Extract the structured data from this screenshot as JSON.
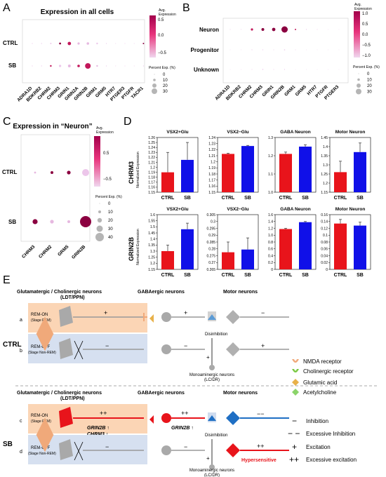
{
  "panel_letters": [
    "A",
    "B",
    "C",
    "D",
    "E"
  ],
  "panelA": {
    "title": "Expression in all cells",
    "rows": [
      "CTRL",
      "SB"
    ],
    "genes": [
      "ADRA1D",
      "BDKRB2",
      "CHRM2",
      "CHRM3",
      "GRIN1",
      "GRIN2A",
      "GRIN2B",
      "GRM1",
      "GRM5",
      "HTR7",
      "PTGER3",
      "PTGFR",
      "TACR1"
    ],
    "legend_title": "Avg.\nExpression",
    "legend_ticks": [
      "0.5",
      "0.0",
      "−0.5"
    ],
    "size_title": "Percent Exp. (%)",
    "size_ticks": [
      "0",
      "10",
      "20",
      "30"
    ]
  },
  "panelB": {
    "rows": [
      "Neuron",
      "Progenitor",
      "Unknown"
    ],
    "genes": [
      "ADRA1D",
      "BDKRB2",
      "CHRM2",
      "CHRM3",
      "GRIN1",
      "GRIN2B",
      "GRM1",
      "GRM5",
      "HTR7",
      "PTGFR",
      "PTGER3"
    ],
    "legend_title": "Avg.\nExpression",
    "legend_ticks": [
      "1.0",
      "0.5",
      "0.0",
      "−0.5",
      "−1.0"
    ],
    "size_title": "Percent Exp. (%)",
    "size_ticks": [
      "0",
      "10",
      "20",
      "30"
    ]
  },
  "panelC": {
    "title": "Expression in “Neuron”",
    "rows": [
      "CTRL",
      "SB"
    ],
    "genes": [
      "CHRM3",
      "CHRM2",
      "GRM5",
      "GRIN2B"
    ],
    "legend_title": "Avg.\nExpression",
    "legend_ticks": [
      "0.5",
      "−0.5"
    ],
    "size_title": "Percent Exp. (%)",
    "size_ticks": [
      "0",
      "10",
      "20",
      "30",
      "40"
    ]
  },
  "panelD": {
    "row_labels": [
      "CHRM3",
      "GRIN2B"
    ],
    "ylabel": "Normalized Expression",
    "colors": {
      "ctrl": "#e8141b",
      "sb": "#1010e8",
      "err": "#f2a0c4"
    },
    "charts": [
      {
        "title": "VSX2+Glu",
        "categories": [
          "CTRL",
          "SB"
        ],
        "values": [
          1.19,
          1.215
        ],
        "errors": [
          0.04,
          0.035
        ],
        "ylim": [
          1.15,
          1.26
        ],
        "ticks": [
          "1.15",
          "1.16",
          "1.17",
          "1.18",
          "1.19",
          "1.2",
          "1.21",
          "1.22",
          "1.23",
          "1.24",
          "1.25",
          "1.26"
        ]
      },
      {
        "title": "VSX2−Glu",
        "categories": [
          "CTRL",
          "SB"
        ],
        "values": [
          1.213,
          1.226
        ],
        "errors": [
          0.001,
          0.001
        ],
        "ylim": [
          1.15,
          1.24
        ],
        "ticks": [
          "1.15",
          "1.16",
          "1.17",
          "1.18",
          "1.19",
          "1.2",
          "1.21",
          "1.22",
          "1.23",
          "1.24"
        ]
      },
      {
        "title": "GABA Neuron",
        "categories": [
          "CTRL",
          "SB"
        ],
        "values": [
          1.21,
          1.25
        ],
        "errors": [
          0.01,
          0.01
        ],
        "ylim": [
          1.0,
          1.3
        ],
        "ticks": [
          "1.0",
          "1.1",
          "1.2",
          "1.3"
        ]
      },
      {
        "title": "Motor Neuron",
        "categories": [
          "CTRL",
          "SB"
        ],
        "values": [
          1.26,
          1.37
        ],
        "errors": [
          0.06,
          0.05
        ],
        "ylim": [
          1.15,
          1.45
        ],
        "ticks": [
          "1.15",
          "1.2",
          "1.25",
          "1.3",
          "1.35",
          "1.4",
          "1.45"
        ]
      },
      {
        "title": "VSX2+Glu",
        "categories": [
          "CTRL",
          "SB"
        ],
        "values": [
          1.3,
          1.48
        ],
        "errors": [
          0.05,
          0.05
        ],
        "ylim": [
          1.15,
          1.6
        ],
        "ticks": [
          "1.15",
          "1.2",
          "1.25",
          "1.3",
          "1.35",
          "1.4",
          "1.45",
          "1.5",
          "1.55",
          "1.6"
        ]
      },
      {
        "title": "VSX2−Glu",
        "categories": [
          "CTRL",
          "SB"
        ],
        "values": [
          0.2775,
          0.2795
        ],
        "errors": [
          0.0075,
          0.0085
        ],
        "ylim": [
          0.265,
          0.305
        ],
        "ticks": [
          "0.265",
          "0.27",
          "0.275",
          "0.28",
          "0.285",
          "0.29",
          "0.295",
          "0.3",
          "0.305"
        ]
      },
      {
        "title": "GABA Neuron",
        "categories": [
          "CTRL",
          "SB"
        ],
        "values": [
          1.18,
          1.38
        ],
        "errors": [
          0.02,
          0.02
        ],
        "ylim": [
          0.0,
          1.6
        ],
        "ticks": [
          "0",
          "0.2",
          "0.4",
          "0.6",
          "0.8",
          "1.0",
          "1.2",
          "1.4",
          "1.6"
        ]
      },
      {
        "title": "Motor Neuron",
        "categories": [
          "CTRL",
          "SB"
        ],
        "values": [
          0.134,
          0.128
        ],
        "errors": [
          0.012,
          0.01
        ],
        "ylim": [
          0.0,
          0.16
        ],
        "ticks": [
          "0",
          "0.02",
          "0.04",
          "0.06",
          "0.08",
          "0.1",
          "0.12",
          "0.14",
          "0.16"
        ]
      }
    ]
  },
  "panelE": {
    "header_glu": "Glutamatergic / Cholinergic neurons",
    "header_glu2": "(LDT/PPN)",
    "header_gaba": "GABAergic neurons",
    "header_motor": "Motor neurons",
    "group_ctrl": "CTRL",
    "group_sb": "SB",
    "rows": [
      "a",
      "b",
      "c",
      "d"
    ],
    "rem_on": "REM-ON",
    "rem_on_sub": "(Stage REM)",
    "rem_off": "REM-OFF",
    "rem_off_sub": "(Stage Non-REM)",
    "disinhibition": "Disinhibition",
    "mono": "Monoaminergic neurons",
    "mono_sub": "(LC/DR)",
    "grin2b_chrm3_1": "GRIN2B ↑",
    "grin2b_chrm3_2": "CHRM3 ↑",
    "grin2b_gaba": "GRIN2B ↑",
    "hypersensitive": "Hypersensitive",
    "signs": {
      "plus": "+",
      "plusplus": "++",
      "minus": "−",
      "minusminus": "−−"
    },
    "legend": [
      "NMDA receptor",
      "Cholinergic receptor",
      "Glutamic acid",
      "Acetylcholine",
      "Inhibition",
      "Excessive Inhibition",
      "Excitation",
      "Excessive excitation"
    ],
    "legend_symbols": [
      "−",
      "− −",
      "+",
      "++"
    ]
  }
}
